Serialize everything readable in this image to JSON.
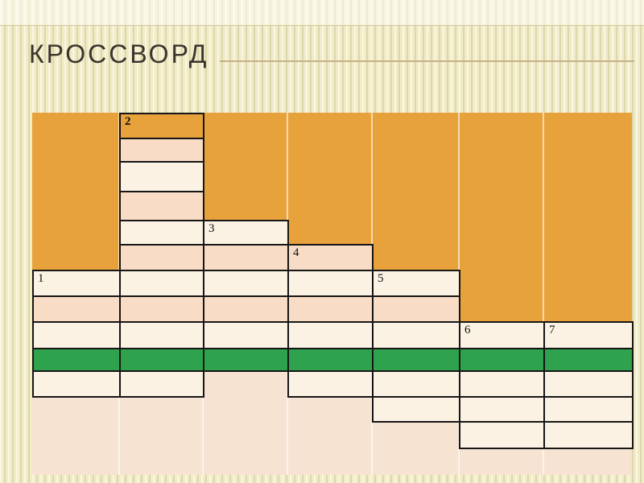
{
  "slide": {
    "title": "КРОССВОРД"
  },
  "colors": {
    "orange": "#E8A23C",
    "cell_light": "#FCF2E4",
    "cell_pink": "#F8DCC6",
    "green": "#2EA24D",
    "cream_bg": "#F6E3D2",
    "border": "#161616",
    "title_text": "#3A342C",
    "title_rule": "#C3B186"
  },
  "grid": {
    "col_edges": [
      0,
      108,
      212,
      317,
      422,
      530,
      635,
      745
    ],
    "row_edges": [
      0,
      31,
      60,
      97,
      133,
      163,
      195,
      227,
      259,
      292,
      320,
      352,
      383,
      416,
      450
    ],
    "separator_cols": [
      1,
      2,
      3,
      4,
      5,
      6
    ],
    "orange_blocks": [
      {
        "c1": 1,
        "c2": 1,
        "r1": 1,
        "r2": 6
      },
      {
        "c1": 3,
        "c2": 3,
        "r1": 1,
        "r2": 4
      },
      {
        "c1": 4,
        "c2": 4,
        "r1": 1,
        "r2": 5
      },
      {
        "c1": 5,
        "c2": 5,
        "r1": 1,
        "r2": 6
      },
      {
        "c1": 6,
        "c2": 7,
        "r1": 1,
        "r2": 8
      }
    ],
    "cells": [
      {
        "c": 1,
        "r": 7,
        "fill": "white",
        "n": "1"
      },
      {
        "c": 1,
        "r": 8,
        "fill": "pink"
      },
      {
        "c": 1,
        "r": 9,
        "fill": "white"
      },
      {
        "c": 1,
        "r": 10,
        "fill": "green"
      },
      {
        "c": 1,
        "r": 11,
        "fill": "white"
      },
      {
        "c": 2,
        "r": 1,
        "fill": "orange",
        "n": "2",
        "bold": true
      },
      {
        "c": 2,
        "r": 2,
        "fill": "pink"
      },
      {
        "c": 2,
        "r": 3,
        "fill": "white"
      },
      {
        "c": 2,
        "r": 4,
        "fill": "pink"
      },
      {
        "c": 2,
        "r": 5,
        "fill": "white"
      },
      {
        "c": 2,
        "r": 6,
        "fill": "pink"
      },
      {
        "c": 2,
        "r": 7,
        "fill": "white"
      },
      {
        "c": 2,
        "r": 8,
        "fill": "pink"
      },
      {
        "c": 2,
        "r": 9,
        "fill": "white"
      },
      {
        "c": 2,
        "r": 10,
        "fill": "green"
      },
      {
        "c": 2,
        "r": 11,
        "fill": "white"
      },
      {
        "c": 3,
        "r": 5,
        "fill": "white",
        "n": "3"
      },
      {
        "c": 3,
        "r": 6,
        "fill": "pink"
      },
      {
        "c": 3,
        "r": 7,
        "fill": "white"
      },
      {
        "c": 3,
        "r": 8,
        "fill": "pink"
      },
      {
        "c": 3,
        "r": 9,
        "fill": "white"
      },
      {
        "c": 3,
        "r": 10,
        "fill": "green"
      },
      {
        "c": 4,
        "r": 6,
        "fill": "pink",
        "n": "4"
      },
      {
        "c": 4,
        "r": 7,
        "fill": "white"
      },
      {
        "c": 4,
        "r": 8,
        "fill": "pink"
      },
      {
        "c": 4,
        "r": 9,
        "fill": "white"
      },
      {
        "c": 4,
        "r": 10,
        "fill": "green"
      },
      {
        "c": 4,
        "r": 11,
        "fill": "white"
      },
      {
        "c": 5,
        "r": 7,
        "fill": "white",
        "n": "5"
      },
      {
        "c": 5,
        "r": 8,
        "fill": "pink"
      },
      {
        "c": 5,
        "r": 9,
        "fill": "white"
      },
      {
        "c": 5,
        "r": 10,
        "fill": "green"
      },
      {
        "c": 5,
        "r": 11,
        "fill": "white"
      },
      {
        "c": 5,
        "r": 12,
        "fill": "white"
      },
      {
        "c": 6,
        "r": 9,
        "fill": "white",
        "n": "6"
      },
      {
        "c": 6,
        "r": 10,
        "fill": "green"
      },
      {
        "c": 6,
        "r": 11,
        "fill": "white"
      },
      {
        "c": 6,
        "r": 12,
        "fill": "white"
      },
      {
        "c": 6,
        "r": 13,
        "fill": "white"
      },
      {
        "c": 7,
        "r": 9,
        "fill": "white",
        "n": "7"
      },
      {
        "c": 7,
        "r": 10,
        "fill": "green"
      },
      {
        "c": 7,
        "r": 11,
        "fill": "white"
      },
      {
        "c": 7,
        "r": 12,
        "fill": "white"
      },
      {
        "c": 7,
        "r": 13,
        "fill": "white"
      }
    ]
  }
}
